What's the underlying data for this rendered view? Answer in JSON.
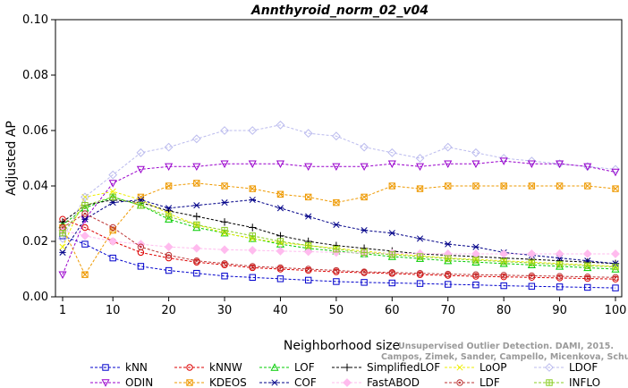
{
  "chart_data": {
    "type": "line",
    "title": "Annthyroid_norm_02_v04",
    "xlabel": "Neighborhood size",
    "ylabel": "Adjusted AP",
    "xlim": [
      1,
      100
    ],
    "ylim": [
      0,
      0.1
    ],
    "x_ticks": [
      1,
      10,
      20,
      30,
      40,
      50,
      60,
      70,
      80,
      90,
      100
    ],
    "y_ticks": [
      0.0,
      0.02,
      0.04,
      0.06,
      0.08,
      0.1
    ],
    "y_tick_labels": [
      "0.00",
      "0.02",
      "0.04",
      "0.06",
      "0.08",
      "0.10"
    ],
    "grid": false,
    "legend_position": "bottom",
    "x": [
      1,
      5,
      10,
      15,
      20,
      25,
      30,
      35,
      40,
      45,
      50,
      55,
      60,
      65,
      70,
      75,
      80,
      85,
      90,
      95,
      100
    ],
    "series": [
      {
        "name": "kNN",
        "color": "#0000cc",
        "marker": "square",
        "values": [
          0.022,
          0.019,
          0.014,
          0.011,
          0.0095,
          0.0085,
          0.0075,
          0.007,
          0.0065,
          0.006,
          0.0055,
          0.0052,
          0.005,
          0.0048,
          0.0045,
          0.0043,
          0.004,
          0.0038,
          0.0036,
          0.0034,
          0.0032
        ]
      },
      {
        "name": "kNNW",
        "color": "#dd0000",
        "marker": "circle",
        "values": [
          0.028,
          0.025,
          0.02,
          0.016,
          0.014,
          0.0125,
          0.0115,
          0.0105,
          0.01,
          0.0095,
          0.009,
          0.0087,
          0.0084,
          0.008,
          0.0077,
          0.0074,
          0.0072,
          0.007,
          0.0068,
          0.0066,
          0.0064
        ]
      },
      {
        "name": "LOF",
        "color": "#00cc00",
        "marker": "triangle-up",
        "values": [
          0.026,
          0.032,
          0.036,
          0.033,
          0.028,
          0.025,
          0.023,
          0.021,
          0.019,
          0.0175,
          0.0165,
          0.0155,
          0.0145,
          0.0138,
          0.013,
          0.0125,
          0.012,
          0.0115,
          0.011,
          0.0105,
          0.01
        ]
      },
      {
        "name": "SimplifiedLOF",
        "color": "#000000",
        "marker": "plus",
        "values": [
          0.027,
          0.033,
          0.035,
          0.034,
          0.031,
          0.029,
          0.027,
          0.025,
          0.022,
          0.02,
          0.0185,
          0.0175,
          0.0165,
          0.0155,
          0.015,
          0.0145,
          0.014,
          0.0135,
          0.013,
          0.0125,
          0.012
        ]
      },
      {
        "name": "LoOP",
        "color": "#eeee00",
        "marker": "x",
        "values": [
          0.018,
          0.036,
          0.038,
          0.035,
          0.03,
          0.026,
          0.023,
          0.021,
          0.0195,
          0.0185,
          0.0175,
          0.0165,
          0.0155,
          0.0148,
          0.014,
          0.0135,
          0.013,
          0.0125,
          0.012,
          0.0115,
          0.011
        ]
      },
      {
        "name": "LDOF",
        "color": "#bbbbee",
        "marker": "diamond",
        "values": [
          0.021,
          0.036,
          0.044,
          0.052,
          0.054,
          0.057,
          0.06,
          0.06,
          0.062,
          0.059,
          0.058,
          0.054,
          0.052,
          0.05,
          0.054,
          0.052,
          0.05,
          0.049,
          0.048,
          0.047,
          0.046
        ]
      },
      {
        "name": "ODIN",
        "color": "#9900cc",
        "marker": "triangle-down",
        "values": [
          0.008,
          0.028,
          0.041,
          0.046,
          0.047,
          0.047,
          0.048,
          0.048,
          0.048,
          0.047,
          0.047,
          0.047,
          0.048,
          0.047,
          0.048,
          0.048,
          0.049,
          0.048,
          0.048,
          0.047,
          0.045
        ]
      },
      {
        "name": "KDEOS",
        "color": "#ee9900",
        "marker": "square-x",
        "values": [
          0.025,
          0.008,
          0.024,
          0.036,
          0.04,
          0.041,
          0.04,
          0.039,
          0.037,
          0.036,
          0.034,
          0.036,
          0.04,
          0.039,
          0.04,
          0.04,
          0.04,
          0.04,
          0.04,
          0.04,
          0.039
        ]
      },
      {
        "name": "COF",
        "color": "#000088",
        "marker": "asterisk",
        "values": [
          0.016,
          0.028,
          0.034,
          0.035,
          0.032,
          0.033,
          0.034,
          0.035,
          0.032,
          0.029,
          0.026,
          0.024,
          0.023,
          0.021,
          0.019,
          0.018,
          0.016,
          0.015,
          0.014,
          0.013,
          0.012
        ]
      },
      {
        "name": "FastABOD",
        "color": "#ffbbee",
        "marker": "diamond-filled",
        "values": [
          0.024,
          0.022,
          0.02,
          0.019,
          0.018,
          0.0175,
          0.017,
          0.0168,
          0.0165,
          0.0163,
          0.016,
          0.0158,
          0.0157,
          0.0156,
          0.0155,
          0.0155,
          0.0155,
          0.0155,
          0.0155,
          0.0155,
          0.0155
        ]
      },
      {
        "name": "LDF",
        "color": "#bb3333",
        "marker": "circle-dot",
        "values": [
          0.025,
          0.03,
          0.025,
          0.018,
          0.015,
          0.013,
          0.012,
          0.011,
          0.0105,
          0.01,
          0.0095,
          0.009,
          0.0088,
          0.0085,
          0.0082,
          0.008,
          0.0078,
          0.0076,
          0.0074,
          0.0072,
          0.007
        ]
      },
      {
        "name": "INFLO",
        "color": "#88cc22",
        "marker": "square-cross",
        "values": [
          0.023,
          0.033,
          0.036,
          0.033,
          0.029,
          0.026,
          0.024,
          0.022,
          0.02,
          0.0185,
          0.0172,
          0.016,
          0.0152,
          0.0145,
          0.0138,
          0.0132,
          0.0127,
          0.0122,
          0.0117,
          0.0112,
          0.0108
        ]
      }
    ]
  },
  "watermark": {
    "line1": "Unsupervised Outlier Detection. DAMI, 2015.",
    "line2": "Campos, Zimek, Sander, Campello, Micenkova, Schubert, Assent, Houle"
  }
}
